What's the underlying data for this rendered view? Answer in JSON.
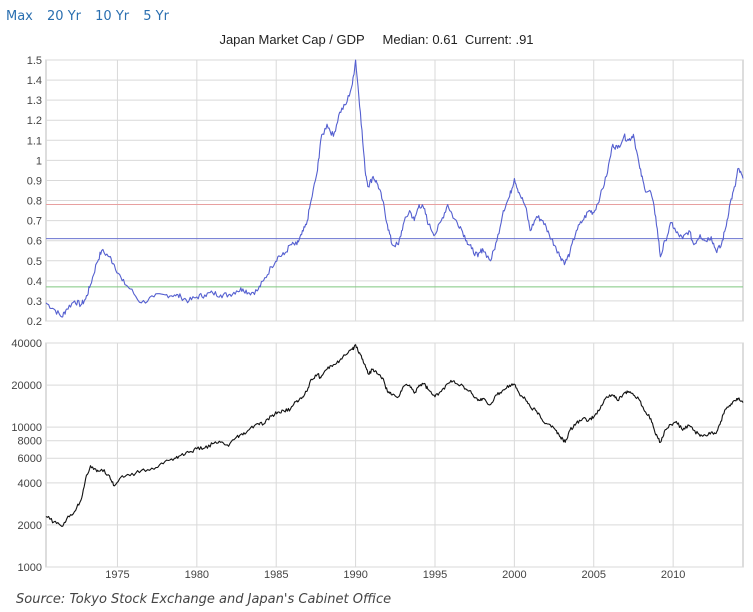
{
  "range_selector": {
    "options": [
      "Max",
      "20 Yr",
      "10 Yr",
      "5 Yr"
    ]
  },
  "source": "Source: Tokyo Stock Exchange and Japan's Cabinet Office",
  "colors": {
    "ratio_line": "#5560d0",
    "index_line": "#111111",
    "mean_line": "#e8a0a0",
    "median_line": "#6a72d0",
    "low_line": "#7fc87f",
    "grid": "#d9d9d9"
  },
  "chart_data": [
    {
      "type": "line",
      "title": "Japan Market Cap / GDP     Median: 0.61  Current: .91",
      "ylim": [
        0.2,
        1.5
      ],
      "yticks": [
        "0.2",
        "0.3",
        "0.4",
        "0.5",
        "0.6",
        "0.7",
        "0.8",
        "0.9",
        "1",
        "1.1",
        "1.2",
        "1.3",
        "1.4",
        "1.5"
      ],
      "xlim": [
        1970.5,
        2014.4
      ],
      "horizontal_lines": [
        0.78,
        0.61,
        0.37
      ],
      "series": [
        {
          "x": [
            1970.5,
            1971.0,
            1971.5,
            1971.8,
            1972.3,
            1972.7,
            1973.0,
            1973.3,
            1973.7,
            1974.0,
            1974.5,
            1974.8,
            1975.3,
            1975.8,
            1976.5,
            1977.3,
            1978.0,
            1978.6,
            1979.0,
            1979.5,
            1980.0,
            1980.5,
            1981.0,
            1981.5,
            1982.0,
            1982.5,
            1982.9,
            1983.3,
            1983.8,
            1984.2,
            1984.7,
            1985.1,
            1985.5,
            1985.9,
            1986.3,
            1986.6,
            1986.9,
            1987.2,
            1987.6,
            1987.8,
            1988.2,
            1988.6,
            1989.0,
            1989.4,
            1989.8,
            1990.0,
            1990.3,
            1990.6,
            1990.8,
            1991.1,
            1991.4,
            1991.7,
            1992.0,
            1992.3,
            1992.7,
            1993.0,
            1993.4,
            1993.7,
            1994.0,
            1994.3,
            1994.6,
            1995.0,
            1995.4,
            1995.8,
            1996.2,
            1996.6,
            1997.0,
            1997.3,
            1997.7,
            1998.0,
            1998.5,
            1998.9,
            1999.3,
            1999.7,
            2000.0,
            2000.3,
            2000.7,
            2001.0,
            2001.4,
            2001.8,
            2002.2,
            2002.6,
            2002.9,
            2003.2,
            2003.5,
            2003.9,
            2004.3,
            2004.7,
            2005.0,
            2005.4,
            2005.8,
            2006.2,
            2006.5,
            2006.9,
            2007.2,
            2007.5,
            2007.9,
            2008.2,
            2008.6,
            2008.9,
            2009.2,
            2009.5,
            2009.9,
            2010.2,
            2010.6,
            2011.0,
            2011.3,
            2011.7,
            2012.0,
            2012.4,
            2012.7,
            2013.0,
            2013.3,
            2013.6,
            2013.9,
            2014.1,
            2014.4
          ],
          "values": [
            0.29,
            0.26,
            0.22,
            0.26,
            0.3,
            0.28,
            0.31,
            0.38,
            0.49,
            0.55,
            0.52,
            0.48,
            0.4,
            0.36,
            0.29,
            0.32,
            0.33,
            0.33,
            0.32,
            0.3,
            0.32,
            0.33,
            0.34,
            0.33,
            0.33,
            0.35,
            0.36,
            0.34,
            0.35,
            0.4,
            0.47,
            0.52,
            0.53,
            0.58,
            0.58,
            0.63,
            0.68,
            0.8,
            0.95,
            1.1,
            1.18,
            1.12,
            1.24,
            1.28,
            1.38,
            1.5,
            1.24,
            0.95,
            0.87,
            0.92,
            0.88,
            0.8,
            0.68,
            0.58,
            0.58,
            0.68,
            0.75,
            0.7,
            0.78,
            0.76,
            0.68,
            0.63,
            0.7,
            0.78,
            0.71,
            0.67,
            0.6,
            0.56,
            0.52,
            0.56,
            0.5,
            0.6,
            0.75,
            0.82,
            0.91,
            0.84,
            0.77,
            0.65,
            0.72,
            0.7,
            0.63,
            0.57,
            0.52,
            0.49,
            0.54,
            0.65,
            0.7,
            0.75,
            0.74,
            0.82,
            0.92,
            1.08,
            1.06,
            1.12,
            1.1,
            1.13,
            0.96,
            0.86,
            0.84,
            0.72,
            0.52,
            0.6,
            0.69,
            0.64,
            0.61,
            0.65,
            0.58,
            0.63,
            0.6,
            0.62,
            0.55,
            0.57,
            0.66,
            0.79,
            0.87,
            0.96,
            0.91
          ]
        }
      ]
    },
    {
      "type": "line",
      "yscale": "log",
      "ylim": [
        1000,
        40000
      ],
      "yticks": [
        "1000",
        "2000",
        "4000",
        "6000",
        "8000",
        "10000",
        "20000",
        "40000"
      ],
      "xlim": [
        1970.5,
        2014.4
      ],
      "xticks": [
        "1975",
        "1980",
        "1985",
        "1990",
        "1995",
        "2000",
        "2005",
        "2010"
      ],
      "series": [
        {
          "x": [
            1970.5,
            1971.0,
            1971.5,
            1971.8,
            1972.3,
            1972.7,
            1973.0,
            1973.3,
            1973.7,
            1974.0,
            1974.5,
            1974.8,
            1975.3,
            1975.8,
            1976.5,
            1977.3,
            1978.0,
            1978.6,
            1979.0,
            1979.5,
            1980.0,
            1980.5,
            1981.0,
            1981.5,
            1982.0,
            1982.5,
            1982.9,
            1983.3,
            1983.8,
            1984.2,
            1984.7,
            1985.1,
            1985.5,
            1985.9,
            1986.3,
            1986.6,
            1986.9,
            1987.2,
            1987.6,
            1987.8,
            1988.2,
            1988.6,
            1989.0,
            1989.4,
            1989.8,
            1990.0,
            1990.3,
            1990.6,
            1990.8,
            1991.1,
            1991.4,
            1991.7,
            1992.0,
            1992.3,
            1992.7,
            1993.0,
            1993.4,
            1993.7,
            1994.0,
            1994.3,
            1994.6,
            1995.0,
            1995.4,
            1995.8,
            1996.2,
            1996.6,
            1997.0,
            1997.3,
            1997.7,
            1998.0,
            1998.5,
            1998.9,
            1999.3,
            1999.7,
            2000.0,
            2000.3,
            2000.7,
            2001.0,
            2001.4,
            2001.8,
            2002.2,
            2002.6,
            2002.9,
            2003.2,
            2003.5,
            2003.9,
            2004.3,
            2004.7,
            2005.0,
            2005.4,
            2005.8,
            2006.2,
            2006.5,
            2006.9,
            2007.2,
            2007.5,
            2007.9,
            2008.2,
            2008.6,
            2008.9,
            2009.2,
            2009.5,
            2009.9,
            2010.2,
            2010.6,
            2011.0,
            2011.3,
            2011.7,
            2012.0,
            2012.4,
            2012.7,
            2013.0,
            2013.3,
            2013.6,
            2013.9,
            2014.1,
            2014.4
          ],
          "values": [
            2300,
            2100,
            1950,
            2200,
            2500,
            3000,
            4300,
            5300,
            4800,
            5000,
            4500,
            3800,
            4500,
            4500,
            4900,
            5000,
            5700,
            6000,
            6300,
            6600,
            7000,
            7100,
            7600,
            7800,
            7300,
            8500,
            8800,
            9600,
            10600,
            10500,
            12000,
            12800,
            13000,
            13500,
            15500,
            16000,
            18000,
            22000,
            24000,
            22500,
            26000,
            28000,
            30000,
            33000,
            36000,
            38900,
            33000,
            28000,
            24000,
            26000,
            24000,
            22500,
            18000,
            17000,
            16500,
            19500,
            20000,
            17500,
            20000,
            20500,
            18500,
            16500,
            18000,
            20500,
            21500,
            20000,
            18500,
            17500,
            15500,
            16000,
            14500,
            17000,
            18500,
            20000,
            20300,
            17500,
            15800,
            14000,
            13000,
            11000,
            10500,
            9500,
            8500,
            7800,
            9500,
            10700,
            11500,
            11300,
            11800,
            13500,
            16500,
            17000,
            15500,
            17500,
            18000,
            17000,
            15500,
            13000,
            11500,
            8800,
            7800,
            9600,
            10400,
            11000,
            9500,
            10300,
            9500,
            8600,
            8800,
            9200,
            9000,
            11000,
            13500,
            14200,
            15500,
            16000,
            15000
          ]
        }
      ]
    }
  ]
}
